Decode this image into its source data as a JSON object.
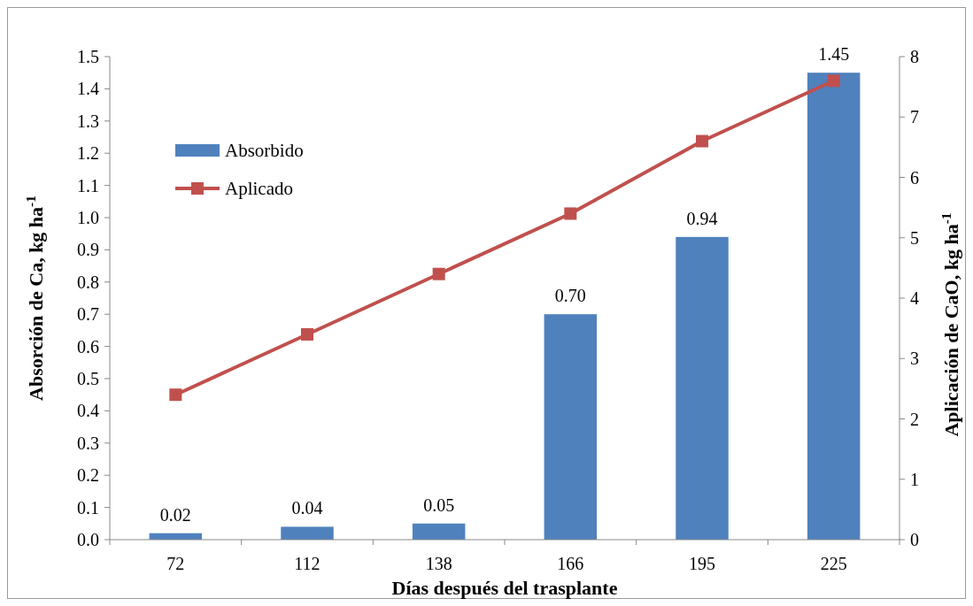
{
  "chart_data": {
    "type": "bar",
    "xlabel": "Días después del trasplante",
    "ylabel": "Absorción de Ca, kg ha$^{-1}$",
    "y2label": "Aplicación de CaO, kg ha$^{-1}$",
    "categories": [
      "72",
      "112",
      "138",
      "166",
      "195",
      "225"
    ],
    "series": [
      {
        "name": "Absorbido",
        "color": "#4f81bd",
        "values": [
          0.02,
          0.04,
          0.05,
          0.7,
          0.94,
          1.45
        ],
        "value_labels": [
          "0.02",
          "0.04",
          "0.05",
          "0.70",
          "0.94",
          "1.45"
        ]
      },
      {
        "name": "Aplicado",
        "type": "line",
        "axis": "y2",
        "color": "#c0504d",
        "marker": "square",
        "values": [
          2.4,
          3.4,
          4.4,
          5.4,
          6.6,
          7.6
        ]
      }
    ],
    "ylim": [
      0,
      1.5
    ],
    "yticks": [
      {
        "value": 0,
        "label": "0.0"
      },
      {
        "value": 0.1,
        "label": "0.1"
      },
      {
        "value": 0.2,
        "label": "0.2"
      },
      {
        "value": 0.3,
        "label": "0.3"
      },
      {
        "value": 0.4,
        "label": "0.4"
      },
      {
        "value": 0.5,
        "label": "0.5"
      },
      {
        "value": 0.6,
        "label": "0.6"
      },
      {
        "value": 0.7,
        "label": "0.7"
      },
      {
        "value": 0.8,
        "label": "0.8"
      },
      {
        "value": 0.9,
        "label": "0.9"
      },
      {
        "value": 1.0,
        "label": "1.0"
      },
      {
        "value": 1.1,
        "label": "1.1"
      },
      {
        "value": 1.2,
        "label": "1.2"
      },
      {
        "value": 1.3,
        "label": "1.3"
      },
      {
        "value": 1.4,
        "label": "1.4"
      },
      {
        "value": 1.5,
        "label": "1.5"
      }
    ],
    "y2lim": [
      0,
      8
    ],
    "y2ticks": [
      0,
      1,
      2,
      3,
      4,
      5,
      6,
      7,
      8
    ],
    "legend": "top left",
    "grid": false
  }
}
